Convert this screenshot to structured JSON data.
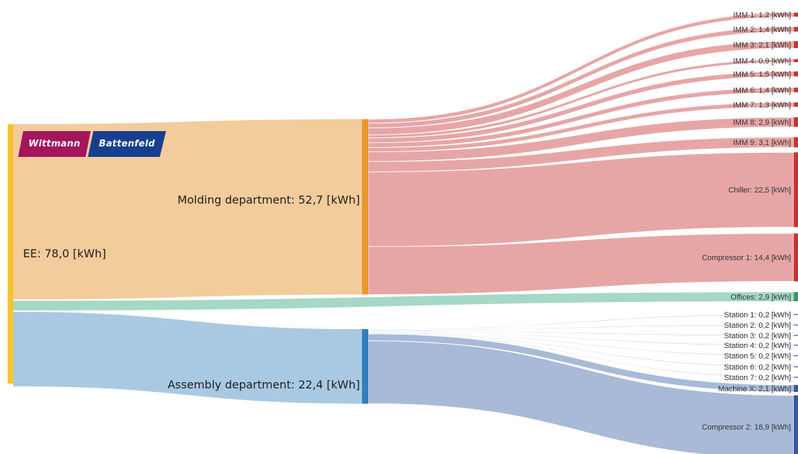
{
  "logo": {
    "left": "Wittmann",
    "right": "Battenfeld"
  },
  "colors": {
    "ee_bar": "#f6c42e",
    "molding_band": "#f2cc9b",
    "molding_bar": "#e8972a",
    "assembly_band": "#a9c9e3",
    "assembly_bar": "#2e7fbd",
    "offices_band": "#a5d8c5",
    "offices_bar": "#2e9e6b",
    "molding_links": "#e6a1a1",
    "molding_targets": "#cc3333",
    "assembly_links": "#a4b6d6",
    "assembly_targets": "#3358a3"
  },
  "labels": {
    "ee": "EE: 78,0 [kWh]",
    "molding": "Molding department: 52,7 [kWh]",
    "assembly": "Assembly department: 22,4 [kWh]"
  },
  "chart_data": {
    "type": "sankey",
    "unit": "kWh",
    "nodes": [
      {
        "id": "ee",
        "label": "EE: 78,0 [kWh]",
        "value": 78.0
      },
      {
        "id": "molding",
        "label": "Molding department: 52,7 [kWh]",
        "value": 52.7
      },
      {
        "id": "assembly",
        "label": "Assembly department: 22,4 [kWh]",
        "value": 22.4
      },
      {
        "id": "offices",
        "label": "Offices: 2,9 [kWh]",
        "value": 2.9
      }
    ],
    "links": [
      {
        "source": "ee",
        "target": "molding",
        "value": 52.7
      },
      {
        "source": "ee",
        "target": "offices",
        "value": 2.9
      },
      {
        "source": "ee",
        "target": "assembly",
        "value": 22.4
      }
    ],
    "molding_targets": [
      {
        "label": "IMM 1: 1,2 [kWh]",
        "value": 1.2
      },
      {
        "label": "IMM 2: 1,4 [kWh]",
        "value": 1.4
      },
      {
        "label": "IMM 3: 2,1 [kWh]",
        "value": 2.1
      },
      {
        "label": "IMM 4: 0,9 [kWh]",
        "value": 0.9
      },
      {
        "label": "IMM 5: 1,5 [kWh]",
        "value": 1.5
      },
      {
        "label": "IMM 6: 1,4 [kWh]",
        "value": 1.4
      },
      {
        "label": "IMM 7: 1,3 [kWh]",
        "value": 1.3
      },
      {
        "label": "IMM 8: 2,9 [kWh]",
        "value": 2.9
      },
      {
        "label": "IMM 9: 3,1 [kWh]",
        "value": 3.1
      },
      {
        "label": "Chiller: 22,5 [kWh]",
        "value": 22.5
      },
      {
        "label": "Compressor 1: 14,4 [kWh]",
        "value": 14.4
      }
    ],
    "assembly_targets": [
      {
        "label": "Station 1: 0,2 [kWh]",
        "value": 0.2
      },
      {
        "label": "Station 2: 0,2 [kWh]",
        "value": 0.2
      },
      {
        "label": "Station 3: 0,2 [kWh]",
        "value": 0.2
      },
      {
        "label": "Station 4: 0,2 [kWh]",
        "value": 0.2
      },
      {
        "label": "Station 5: 0,2 [kWh]",
        "value": 0.2
      },
      {
        "label": "Station 6: 0,2 [kWh]",
        "value": 0.2
      },
      {
        "label": "Station 7: 0,2 [kWh]",
        "value": 0.2
      },
      {
        "label": "Machine X: 2,1 [kWh]",
        "value": 2.1
      },
      {
        "label": "Compressor 2: 18,9 [kWh]",
        "value": 18.9
      }
    ]
  }
}
